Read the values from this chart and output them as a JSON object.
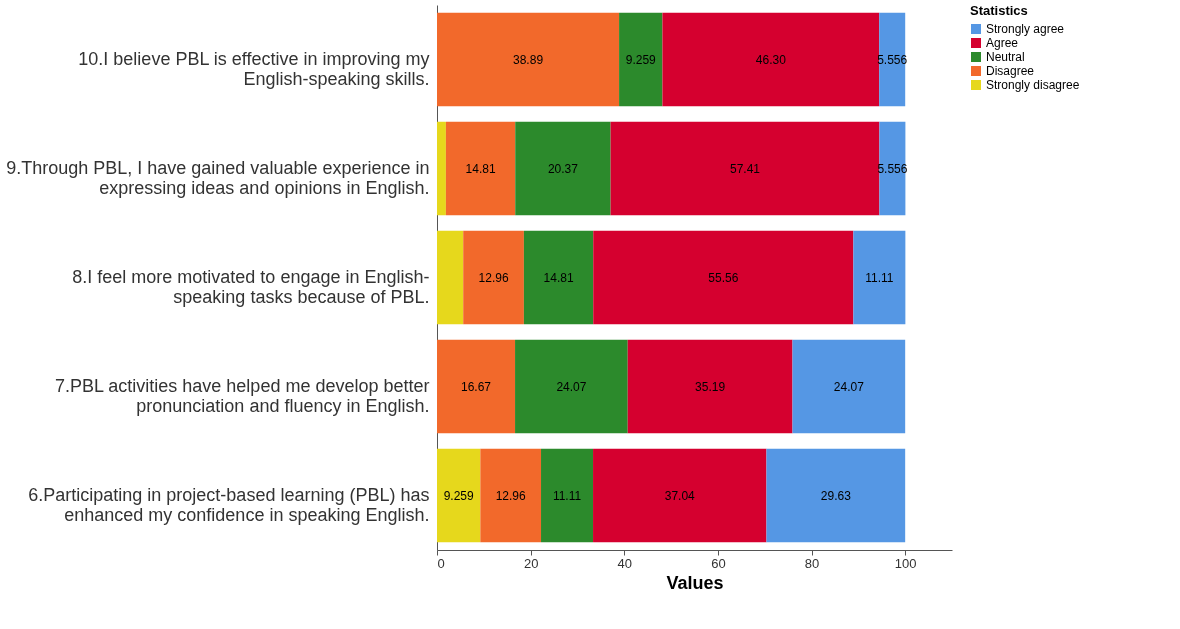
{
  "chart_data": {
    "type": "bar",
    "orientation": "horizontal",
    "stacked": true,
    "categories": [
      "10.I believe PBL is effective in improving my English-speaking skills.",
      "9.Through PBL, I have gained valuable experience in expressing ideas and opinions in English.",
      "8.I feel more motivated to engage in English-speaking tasks because of PBL.",
      "7.PBL activities have helped me develop better pronunciation and fluency in English.",
      "6.Participating in project-based learning (PBL) has enhanced my confidence in speaking English."
    ],
    "series": [
      {
        "name": "Strongly disagree",
        "color": "#e6d81c",
        "values": [
          null,
          1.9,
          5.6,
          null,
          9.259
        ],
        "value_labels": [
          null,
          null,
          null,
          null,
          "9.259"
        ]
      },
      {
        "name": "Disagree",
        "color": "#f2692b",
        "values": [
          38.89,
          14.81,
          12.96,
          16.67,
          12.96
        ],
        "value_labels": [
          "38.89",
          "14.81",
          "12.96",
          "16.67",
          "12.96"
        ]
      },
      {
        "name": "Neutral",
        "color": "#2c8a2c",
        "values": [
          9.259,
          20.37,
          14.81,
          24.07,
          11.11
        ],
        "value_labels": [
          "9.259",
          "20.37",
          "14.81",
          "24.07",
          "11.11"
        ]
      },
      {
        "name": "Agree",
        "color": "#d5002f",
        "values": [
          46.3,
          57.41,
          55.56,
          35.19,
          37.04
        ],
        "value_labels": [
          "46.30",
          "57.41",
          "55.56",
          "35.19",
          "37.04"
        ]
      },
      {
        "name": "Strongly agree",
        "color": "#5597e4",
        "values": [
          5.556,
          5.556,
          11.11,
          24.07,
          29.63
        ],
        "value_labels": [
          "5.556",
          "5.556",
          "11.11",
          "24.07",
          "29.63"
        ]
      }
    ],
    "xlim": [
      0,
      110
    ],
    "xticks": [
      0,
      20,
      40,
      60,
      80,
      100
    ],
    "xlabel": "Values",
    "legend_title": "Statistics",
    "legend": "top right",
    "grid": false
  }
}
